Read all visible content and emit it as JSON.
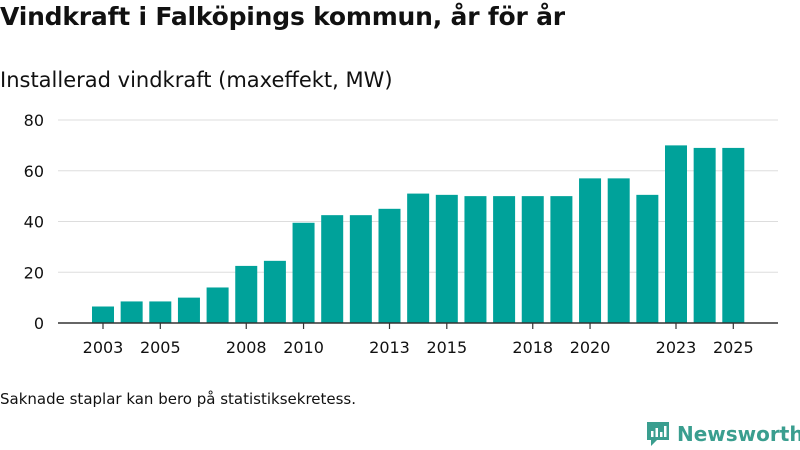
{
  "title": "Vindkraft i Falköpings kommun, år för år",
  "subtitle": "Installerad vindkraft (maxeffekt, MW)",
  "note": "Saknade staplar kan bero på statistiksekretess.",
  "brand": {
    "name": "Newsworthy",
    "color": "#3a9e8f"
  },
  "colors": {
    "bar": "#00a29a",
    "grid": "#dddddd",
    "axis": "#333333",
    "text": "#111111"
  },
  "chart_data": {
    "type": "bar",
    "title": "Installerad vindkraft (maxeffekt, MW)",
    "xlabel": "",
    "ylabel": "",
    "ylim": [
      0,
      80
    ],
    "yticks": [
      0,
      20,
      40,
      60,
      80
    ],
    "categories": [
      "2003",
      "2004",
      "2005",
      "2006",
      "2007",
      "2008",
      "2009",
      "2010",
      "2011",
      "2012",
      "2013",
      "2014",
      "2015",
      "2016",
      "2017",
      "2018",
      "2019",
      "2020",
      "2021",
      "2022",
      "2023",
      "2024",
      "2025"
    ],
    "values": [
      6.5,
      8.5,
      8.5,
      10.0,
      14.0,
      22.5,
      24.5,
      39.5,
      42.5,
      42.5,
      45.0,
      51.0,
      50.5,
      50.0,
      50.0,
      50.0,
      50.0,
      57.0,
      57.0,
      50.5,
      70.0,
      69.0,
      69.0
    ],
    "xtick_labels": [
      "2003",
      "2005",
      "2008",
      "2010",
      "2013",
      "2015",
      "2018",
      "2020",
      "2023",
      "2025"
    ],
    "grid": true,
    "legend": "none"
  }
}
